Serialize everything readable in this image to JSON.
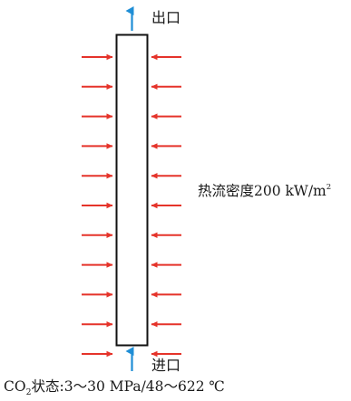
{
  "outlet": {
    "label": "出口"
  },
  "inlet": {
    "label": "进口"
  },
  "heat_flux": {
    "text": "热流密度200 kW/m",
    "exponent": "2"
  },
  "co2_state": {
    "formula": "CO",
    "subscript": "2",
    "text": "状态:3～30 MPa/48～622 ℃"
  },
  "colors": {
    "arrow_heat": "#e5332a",
    "arrow_flow": "#1f8ed6",
    "tube_stroke": "#111111"
  },
  "heat_arrow_rows": 11
}
